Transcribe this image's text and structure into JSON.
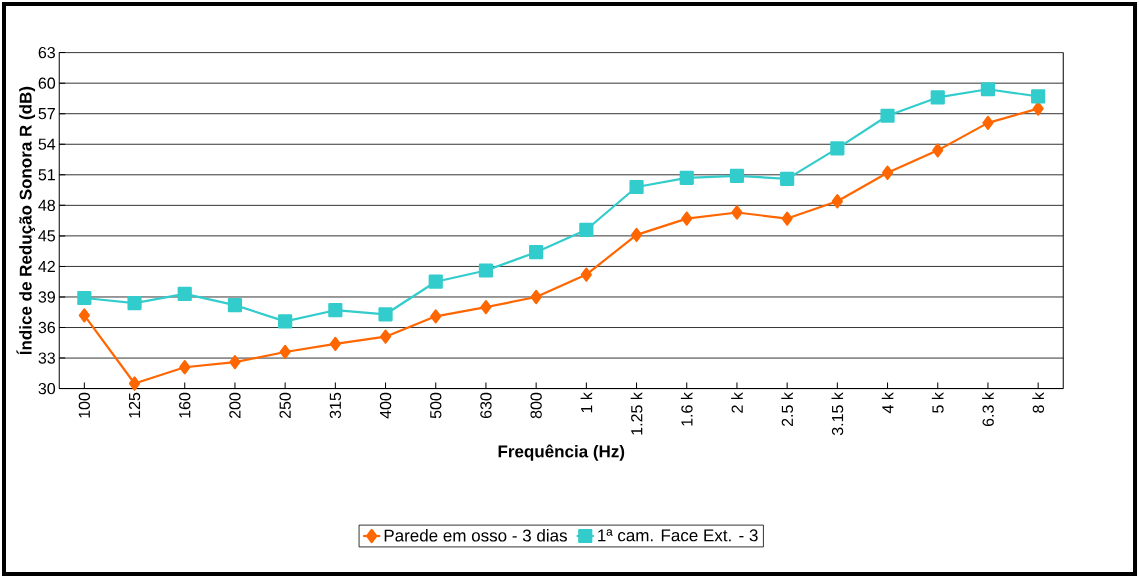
{
  "chart_data": {
    "type": "line",
    "xlabel": "Frequência (Hz)",
    "ylabel": "Índice de Redução Sonora R (dB)",
    "categories": [
      "100",
      "125",
      "160",
      "200",
      "250",
      "315",
      "400",
      "500",
      "630",
      "800",
      "1 k",
      "1.25 k",
      "1.6 k",
      "2 k",
      "2.5 k",
      "3.15 k",
      "4 k",
      "5 k",
      "6.3 k",
      "8 k"
    ],
    "series": [
      {
        "name": "Parede em osso - 3 dias",
        "color": "#ff6600",
        "marker": "diamond",
        "values": [
          37.2,
          30.5,
          32.1,
          32.6,
          33.6,
          34.4,
          35.1,
          37.1,
          38.0,
          39.0,
          41.2,
          45.1,
          46.7,
          47.3,
          46.7,
          48.4,
          51.2,
          53.4,
          56.1,
          57.5
        ]
      },
      {
        "name": "1ª cam. Face Ext. - 3",
        "color": "#33cccc",
        "marker": "square",
        "values": [
          38.9,
          38.4,
          39.3,
          38.2,
          36.6,
          37.7,
          37.3,
          40.5,
          41.6,
          43.4,
          45.6,
          49.8,
          50.7,
          50.9,
          50.6,
          53.6,
          56.8,
          58.6,
          59.4,
          58.7
        ]
      }
    ],
    "ylim": [
      30,
      63
    ],
    "yticks": [
      30,
      33,
      36,
      39,
      42,
      45,
      48,
      51,
      54,
      57,
      60,
      63
    ],
    "grid": "y",
    "legend": "bottom",
    "line_style": "solid"
  }
}
